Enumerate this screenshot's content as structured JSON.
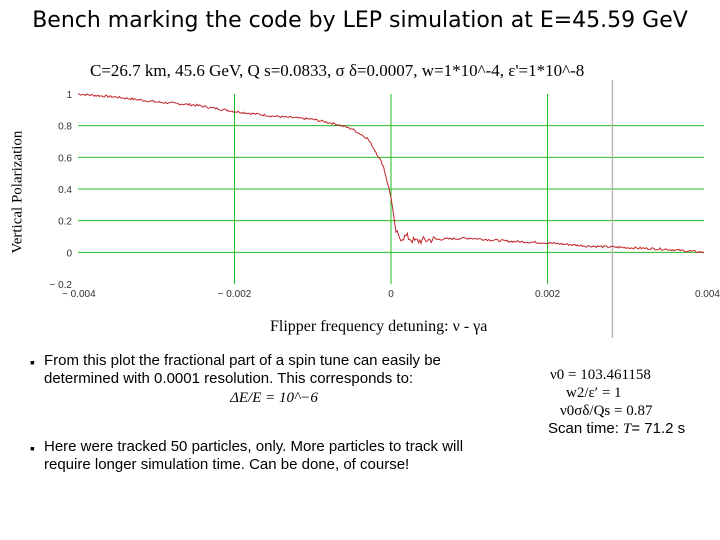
{
  "slide": {
    "title": "Bench marking the code by LEP simulation at E=45.59 GeV"
  },
  "chart_data": {
    "type": "line",
    "title": "C=26.7 km, 45.6 GeV,  Q  s=0.0833,  σ  δ=0.0007, w=1*10^-4,  ε'=1*10^-8",
    "xlabel": "Flipper frequency detuning:  ν - γa",
    "ylabel": "Vertical Polarization",
    "xlim": [
      -0.004,
      0.004
    ],
    "ylim": [
      -0.2,
      1.0
    ],
    "grid": true,
    "x_tick_labels": [
      "− 0.004",
      "− 0.002",
      "0",
      "0.002",
      "0.004"
    ],
    "x_ticks": [
      -0.004,
      -0.002,
      0,
      0.002,
      0.004
    ],
    "y_tick_labels": [
      "− 0.2",
      "0",
      "0.2",
      "0.4",
      "0.6",
      "0.8",
      "1"
    ],
    "y_ticks": [
      -0.2,
      0,
      0.2,
      0.4,
      0.6,
      0.8,
      1.0
    ],
    "series": [
      {
        "name": "vertical polarization",
        "color": "#c0262a",
        "x": [
          -0.004,
          -0.0035,
          -0.003,
          -0.0025,
          -0.002,
          -0.0015,
          -0.001,
          -0.0007,
          -0.0005,
          -0.0003,
          -0.0002,
          -0.0001,
          0,
          5e-05,
          0.0001,
          0.0002,
          0.0003,
          0.0005,
          0.001,
          0.0015,
          0.002,
          0.0025,
          0.003,
          0.0035,
          0.004
        ],
        "y": [
          1.0,
          0.98,
          0.95,
          0.93,
          0.89,
          0.86,
          0.84,
          0.81,
          0.78,
          0.72,
          0.64,
          0.55,
          0.35,
          0.15,
          0.09,
          0.1,
          0.07,
          0.08,
          0.09,
          0.07,
          0.06,
          0.04,
          0.03,
          0.02,
          0.0
        ]
      }
    ],
    "gridline_color": "#22bb22"
  },
  "notes": {
    "p1_text": "From this plot the fractional part of a spin tune can easily be determined with 0.0001 resolution. This corresponds to:",
    "p1_formula": "ΔE/E = 10^−6",
    "p2_text": "Here were tracked 50 particles, only. More particles to track will require longer simulation time. Can be done, of course!",
    "bullet": "▪"
  },
  "params": {
    "nu0": "ν0 = 103.461158",
    "w_eps": "w2/ε′ = 1",
    "nu_sigma": "ν0σδ/Qs = 0.87",
    "scan_time_label": "Scan time: ",
    "scan_time_var": "T",
    "scan_time_value": "= 71.2 s"
  }
}
